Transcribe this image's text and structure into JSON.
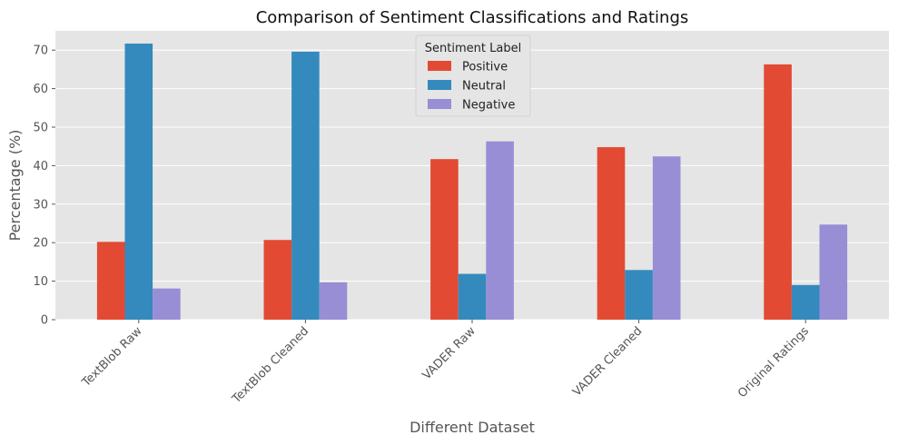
{
  "chart_data": {
    "type": "bar",
    "title": "Comparison of Sentiment Classifications and Ratings",
    "xlabel": "Different Dataset",
    "ylabel": "Percentage (%)",
    "categories": [
      "TextBlob Raw",
      "TextBlob Cleaned",
      "VADER Raw",
      "VADER Cleaned",
      "Original Ratings"
    ],
    "series": [
      {
        "name": "Positive",
        "color": "#E24A33",
        "values": [
          20.2,
          20.7,
          41.7,
          44.8,
          66.3
        ]
      },
      {
        "name": "Neutral",
        "color": "#348ABD",
        "values": [
          71.7,
          69.6,
          11.9,
          12.9,
          9.0
        ]
      },
      {
        "name": "Negative",
        "color": "#988ED5",
        "values": [
          8.1,
          9.7,
          46.3,
          42.4,
          24.7
        ]
      }
    ],
    "ylim": [
      0,
      75
    ],
    "yticks": [
      0,
      10,
      20,
      30,
      40,
      50,
      60,
      70
    ],
    "grid": true,
    "legend": {
      "title": "Sentiment Label",
      "placement": "top-center"
    },
    "background_color": "#E5E5E5",
    "grid_color": "#FFFFFF"
  }
}
